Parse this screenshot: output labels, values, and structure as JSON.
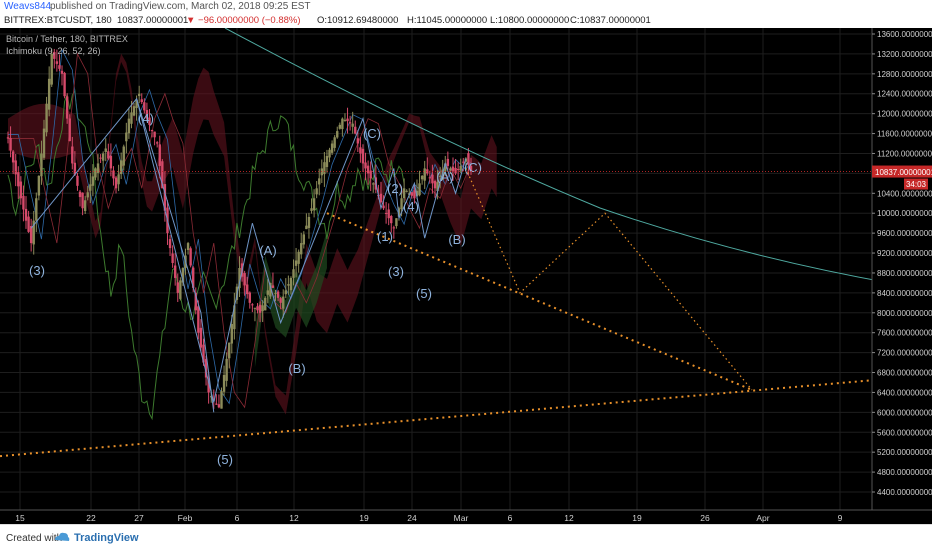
{
  "header": {
    "author": "Weavs844",
    "published": "published on TradingView.com, March 02, 2018 09:25 EST"
  },
  "symbol_bar": {
    "symbol": "BITTREX:BTCUSDT, 180",
    "price": "10837.00000001",
    "change": "▼ −96.00000000 (−0.88%)",
    "open": "O:10912.69480000",
    "high": "H:11045.00000000",
    "low": "L:10800.00000000",
    "close": "C:10837.00000001"
  },
  "legend": {
    "title": "Bitcoin / Tether, 180, BITTREX",
    "indicator": "Ichimoku (9, 26, 52, 26)"
  },
  "footer": {
    "created_with": "Created with",
    "brand": "TradingView"
  },
  "chart_data": {
    "type": "candlestick",
    "ylim": [
      4000,
      13800
    ],
    "y_ticks": [
      4400,
      4800,
      5200,
      5600,
      6000,
      6400,
      6800,
      7200,
      7600,
      8000,
      8400,
      8800,
      9200,
      9600,
      10000,
      10400,
      10800,
      11200,
      11600,
      12000,
      12400,
      12800,
      13200,
      13600
    ],
    "y_tick_labels": [
      "4400.00000000",
      "4800.00000000",
      "5200.00000000",
      "5600.00000000",
      "6000.00000000",
      "6400.00000000",
      "6800.00000000",
      "7200.00000000",
      "7600.00000000",
      "8000.00000000",
      "8400.00000000",
      "8800.00000000",
      "9200.00000000",
      "9600.00000000",
      "10000.00000000",
      "10400.00000000",
      "10800.00000000",
      "11200.00000000",
      "11600.00000000",
      "12000.00000000",
      "12400.00000000",
      "12800.00000000",
      "13200.00000000",
      "13600.00000000"
    ],
    "x_tick_labels": [
      "15",
      "22",
      "27",
      "Feb",
      "6",
      "12",
      "19",
      "24",
      "Mar",
      "6",
      "12",
      "19",
      "26",
      "Apr",
      "9"
    ],
    "last_price_label": "10837.00000001",
    "countdown_label": "34:03",
    "last_price": 10837,
    "price_path": [
      [
        0,
        11500
      ],
      [
        5,
        10300
      ],
      [
        9,
        9400
      ],
      [
        13,
        11200
      ],
      [
        17,
        13200
      ],
      [
        21,
        12800
      ],
      [
        25,
        11000
      ],
      [
        29,
        10100
      ],
      [
        34,
        10900
      ],
      [
        38,
        11300
      ],
      [
        42,
        10500
      ],
      [
        47,
        11900
      ],
      [
        51,
        12400
      ],
      [
        54,
        11900
      ],
      [
        58,
        11400
      ],
      [
        62,
        9600
      ],
      [
        66,
        8400
      ],
      [
        70,
        9400
      ],
      [
        74,
        7600
      ],
      [
        78,
        6400
      ],
      [
        82,
        6100
      ],
      [
        86,
        7400
      ],
      [
        90,
        8900
      ],
      [
        94,
        8200
      ],
      [
        98,
        8000
      ],
      [
        102,
        8600
      ],
      [
        106,
        8200
      ],
      [
        110,
        8700
      ],
      [
        114,
        9400
      ],
      [
        118,
        10100
      ],
      [
        122,
        10900
      ],
      [
        126,
        11400
      ],
      [
        130,
        11900
      ],
      [
        134,
        11800
      ],
      [
        138,
        11000
      ],
      [
        142,
        10600
      ],
      [
        146,
        10100
      ],
      [
        150,
        9700
      ],
      [
        154,
        10500
      ],
      [
        158,
        10300
      ],
      [
        162,
        10900
      ],
      [
        166,
        10500
      ],
      [
        170,
        11000
      ],
      [
        174,
        10800
      ],
      [
        178,
        11100
      ],
      [
        180,
        10837
      ]
    ],
    "wave_labels": [
      "(3)",
      "(4)",
      "(5)",
      "(A)",
      "(B)",
      "(C)",
      "(2)",
      "(1)",
      "(3)",
      "(4)",
      "(5)",
      "(A)",
      "(B)",
      "(C)"
    ]
  },
  "colors": {
    "background": "#000000",
    "up_candle": "#8c8c5a",
    "down_candle": "#d64a6a",
    "trendline": "#4fa9a0",
    "projection": "#e8902a",
    "wave_path": "#6f95c7",
    "cloud_bear": "#6a1420",
    "cloud_bull": "#1f4a1f"
  }
}
